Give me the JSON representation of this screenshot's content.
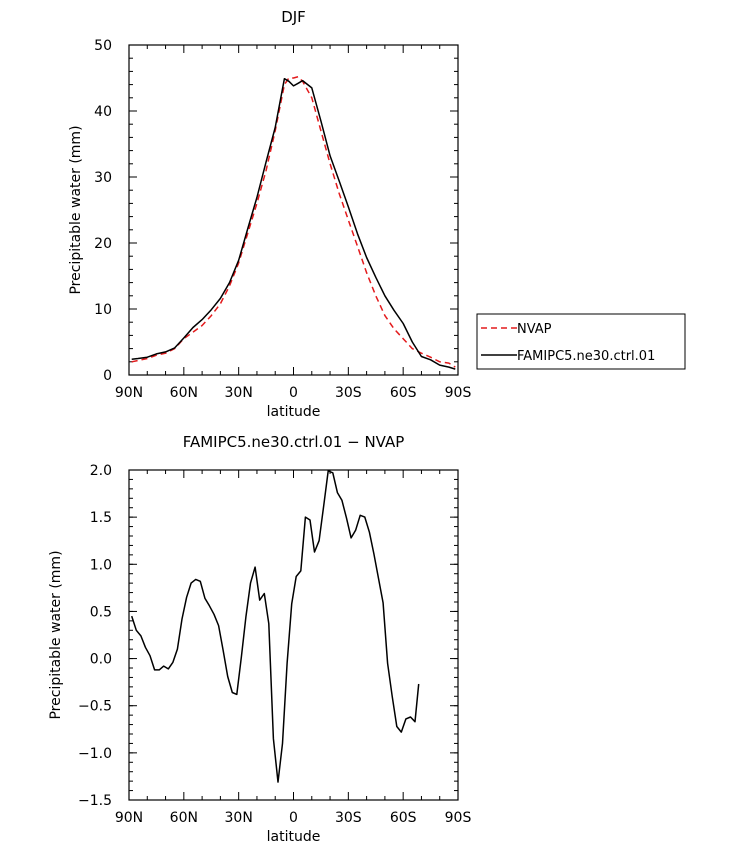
{
  "chart_data": [
    {
      "type": "line",
      "title": "DJF",
      "xlabel": "latitude",
      "ylabel": "Precipitable water (mm)",
      "xlim": [
        90,
        -90
      ],
      "ylim": [
        0,
        50
      ],
      "xticks": [
        90,
        60,
        30,
        0,
        -30,
        -60,
        -90
      ],
      "xtick_labels": [
        "90N",
        "60N",
        "30N",
        "0",
        "30S",
        "60S",
        "90S"
      ],
      "yticks": [
        0,
        10,
        20,
        30,
        40,
        50
      ],
      "ytick_labels": [
        "0",
        "10",
        "20",
        "30",
        "40",
        "50"
      ],
      "legend_position": "right",
      "series": [
        {
          "name": "NVAP",
          "color": "#e31a1c",
          "dash": "dashed",
          "points": [
            [
              88.5,
              2.0
            ],
            [
              85,
              2.2
            ],
            [
              80,
              2.5
            ],
            [
              75,
              3.0
            ],
            [
              70,
              3.3
            ],
            [
              65,
              4.0
            ],
            [
              60,
              5.5
            ],
            [
              55,
              6.5
            ],
            [
              50,
              7.5
            ],
            [
              45,
              9.0
            ],
            [
              40,
              10.8
            ],
            [
              35,
              13.5
            ],
            [
              30,
              17.0
            ],
            [
              25,
              21.5
            ],
            [
              20,
              26.0
            ],
            [
              15,
              31.0
            ],
            [
              10,
              37.0
            ],
            [
              5,
              44.0
            ],
            [
              2.5,
              45.0
            ],
            [
              0,
              45.0
            ],
            [
              -2.5,
              45.2
            ],
            [
              -5,
              44.5
            ],
            [
              -10,
              42.0
            ],
            [
              -15,
              37.0
            ],
            [
              -20,
              32.0
            ],
            [
              -25,
              27.5
            ],
            [
              -30,
              23.5
            ],
            [
              -35,
              19.5
            ],
            [
              -40,
              15.5
            ],
            [
              -45,
              12.0
            ],
            [
              -50,
              9.0
            ],
            [
              -55,
              7.0
            ],
            [
              -60,
              5.5
            ],
            [
              -65,
              4.0
            ],
            [
              -70,
              3.3
            ],
            [
              -75,
              2.7
            ],
            [
              -80,
              2.0
            ],
            [
              -85,
              1.8
            ],
            [
              -88.5,
              1.2
            ]
          ]
        },
        {
          "name": "FAMIPC5.ne30.ctrl.01",
          "color": "#000000",
          "dash": "solid",
          "points": [
            [
              88.5,
              2.4
            ],
            [
              85,
              2.5
            ],
            [
              80,
              2.7
            ],
            [
              75,
              3.2
            ],
            [
              70,
              3.5
            ],
            [
              65,
              4.1
            ],
            [
              60,
              5.6
            ],
            [
              55,
              7.2
            ],
            [
              50,
              8.4
            ],
            [
              45,
              9.9
            ],
            [
              40,
              11.6
            ],
            [
              35,
              14.0
            ],
            [
              30,
              17.4
            ],
            [
              25,
              22.2
            ],
            [
              20,
              26.9
            ],
            [
              15,
              32.3
            ],
            [
              10,
              37.5
            ],
            [
              5,
              44.9
            ],
            [
              2.5,
              44.5
            ],
            [
              0,
              43.8
            ],
            [
              -2.5,
              44.2
            ],
            [
              -5,
              44.6
            ],
            [
              -10,
              43.5
            ],
            [
              -15,
              38.5
            ],
            [
              -20,
              33.2
            ],
            [
              -25,
              29.4
            ],
            [
              -30,
              25.5
            ],
            [
              -35,
              21.4
            ],
            [
              -40,
              17.8
            ],
            [
              -45,
              14.8
            ],
            [
              -50,
              12.0
            ],
            [
              -55,
              9.8
            ],
            [
              -60,
              7.8
            ],
            [
              -65,
              5.0
            ],
            [
              -70,
              2.8
            ],
            [
              -75,
              2.3
            ],
            [
              -80,
              1.5
            ],
            [
              -85,
              1.2
            ],
            [
              -88.5,
              0.9
            ]
          ]
        }
      ]
    },
    {
      "type": "line",
      "title": "FAMIPC5.ne30.ctrl.01 − NVAP",
      "xlabel": "latitude",
      "ylabel": "Precipitable water (mm)",
      "xlim": [
        90,
        -90
      ],
      "ylim": [
        -1.5,
        2.0
      ],
      "xticks": [
        90,
        60,
        30,
        0,
        -30,
        -60,
        -90
      ],
      "xtick_labels": [
        "90N",
        "60N",
        "30N",
        "0",
        "30S",
        "60S",
        "90S"
      ],
      "yticks": [
        -1.5,
        -1.0,
        -0.5,
        0.0,
        0.5,
        1.0,
        1.5,
        2.0
      ],
      "ytick_labels": [
        "−1.5",
        "−1.0",
        "−0.5",
        "0.0",
        "0.5",
        "1.0",
        "1.5",
        "2.0"
      ],
      "series": [
        {
          "color": "#000000",
          "dash": "solid",
          "points": [
            [
              88.5,
              0.45
            ],
            [
              86,
              0.3
            ],
            [
              83.5,
              0.24
            ],
            [
              81,
              0.12
            ],
            [
              78.5,
              0.03
            ],
            [
              76,
              -0.12
            ],
            [
              73.5,
              -0.12
            ],
            [
              71,
              -0.08
            ],
            [
              68.5,
              -0.11
            ],
            [
              66,
              -0.04
            ],
            [
              63.5,
              0.1
            ],
            [
              61,
              0.42
            ],
            [
              58.5,
              0.65
            ],
            [
              56,
              0.8
            ],
            [
              53.5,
              0.84
            ],
            [
              51,
              0.82
            ],
            [
              48.5,
              0.64
            ],
            [
              46,
              0.56
            ],
            [
              43.5,
              0.47
            ],
            [
              41,
              0.35
            ],
            [
              38.5,
              0.09
            ],
            [
              36,
              -0.19
            ],
            [
              33.5,
              -0.36
            ],
            [
              31,
              -0.38
            ],
            [
              28.5,
              0.02
            ],
            [
              26,
              0.45
            ],
            [
              23.5,
              0.8
            ],
            [
              21,
              0.97
            ],
            [
              18.5,
              0.62
            ],
            [
              16,
              0.69
            ],
            [
              13.5,
              0.37
            ],
            [
              11,
              -0.85
            ],
            [
              8.5,
              -1.31
            ],
            [
              6,
              -0.9
            ],
            [
              3.5,
              -0.05
            ],
            [
              1,
              0.58
            ],
            [
              -1.5,
              0.87
            ],
            [
              -4,
              0.93
            ],
            [
              -6.5,
              1.5
            ],
            [
              -9,
              1.47
            ],
            [
              -11.5,
              1.13
            ],
            [
              -14,
              1.25
            ],
            [
              -16.5,
              1.62
            ],
            [
              -19,
              1.99
            ],
            [
              -21.5,
              1.97
            ],
            [
              -24,
              1.76
            ],
            [
              -26.5,
              1.68
            ],
            [
              -29,
              1.49
            ],
            [
              -31.5,
              1.28
            ],
            [
              -34,
              1.36
            ],
            [
              -36.5,
              1.52
            ],
            [
              -39,
              1.5
            ],
            [
              -41.5,
              1.34
            ],
            [
              -44,
              1.11
            ],
            [
              -46.5,
              0.85
            ],
            [
              -49,
              0.59
            ],
            [
              -51.5,
              -0.05
            ],
            [
              -54,
              -0.4
            ],
            [
              -56.5,
              -0.72
            ],
            [
              -59,
              -0.78
            ],
            [
              -61.5,
              -0.64
            ],
            [
              -64,
              -0.62
            ],
            [
              -66.5,
              -0.67
            ],
            [
              -68.5,
              -0.27
            ]
          ]
        }
      ]
    }
  ]
}
